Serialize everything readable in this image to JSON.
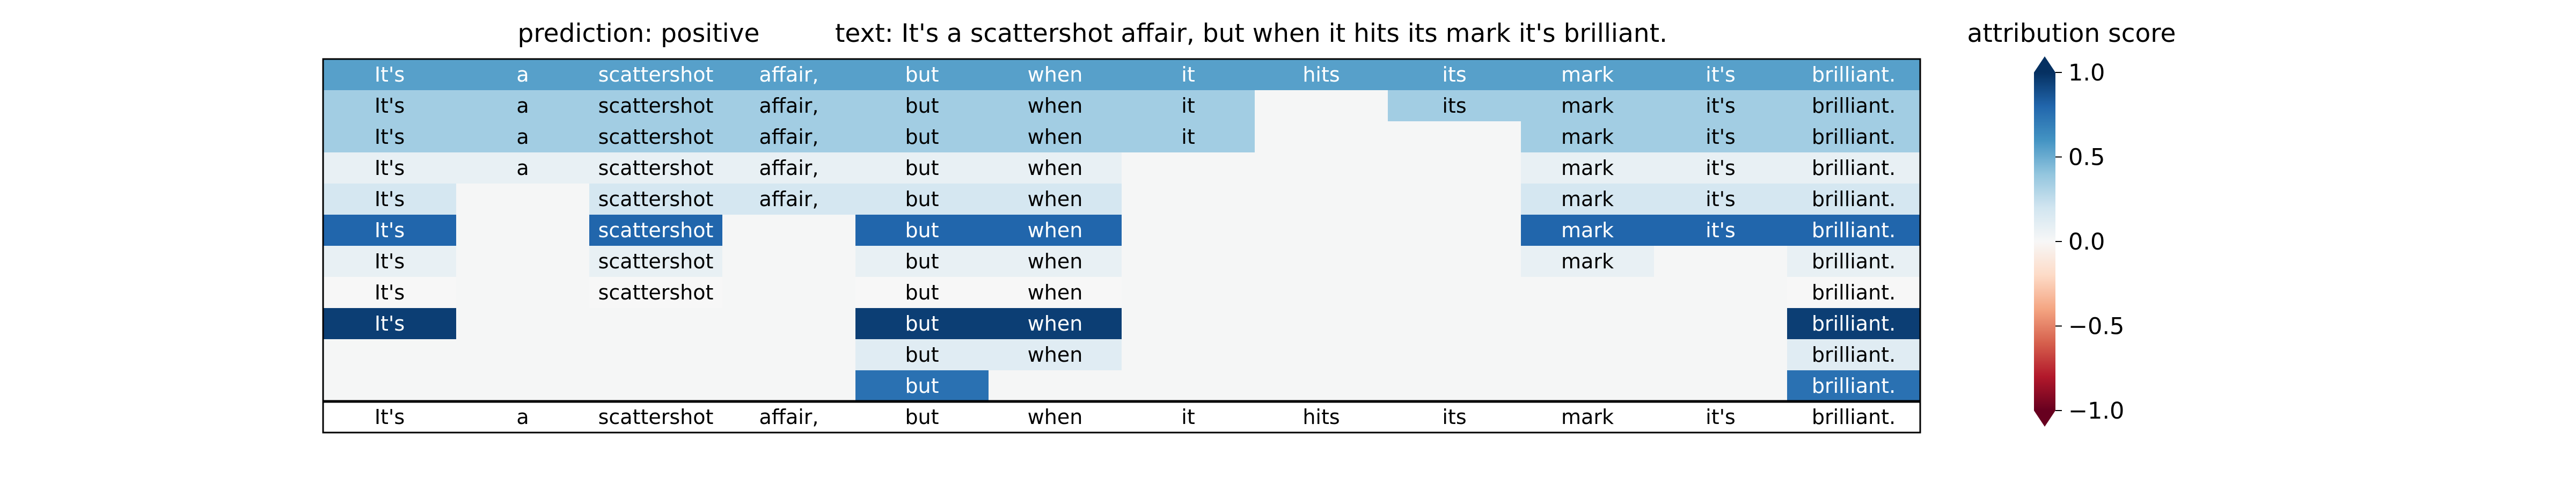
{
  "chart_data": {
    "type": "heatmap",
    "title_prediction": "prediction:  positive",
    "title_text": "text:  It's a scattershot affair, but when it hits its mark it's brilliant.",
    "colorbar_label": "attribution score",
    "colorbar_ticks": [
      "1.0",
      "0.5",
      "0.0",
      "−0.5",
      "−1.0"
    ],
    "colorbar_tick_values": [
      1.0,
      0.5,
      0.0,
      -0.5,
      -1.0
    ],
    "vmin": -1.0,
    "vmax": 1.0,
    "colormap": "RdBu",
    "tokens": [
      "It's",
      "a",
      "scattershot",
      "affair,",
      "but",
      "when",
      "it",
      "hits",
      "its",
      "mark",
      "it's",
      "brilliant."
    ],
    "rows": [
      [
        0.55,
        0.55,
        0.55,
        0.55,
        0.55,
        0.55,
        0.55,
        0.55,
        0.55,
        0.55,
        0.55,
        0.55
      ],
      [
        0.35,
        0.35,
        0.35,
        0.35,
        0.35,
        0.35,
        0.35,
        null,
        0.35,
        0.35,
        0.35,
        0.35
      ],
      [
        0.35,
        0.35,
        0.35,
        0.35,
        0.35,
        0.35,
        0.35,
        null,
        null,
        0.35,
        0.35,
        0.35
      ],
      [
        0.08,
        0.08,
        0.08,
        0.08,
        0.08,
        0.08,
        null,
        null,
        null,
        0.08,
        0.08,
        0.08
      ],
      [
        0.18,
        null,
        0.18,
        0.18,
        0.18,
        0.18,
        null,
        null,
        null,
        0.18,
        0.18,
        0.18
      ],
      [
        0.8,
        null,
        0.8,
        null,
        0.8,
        0.8,
        null,
        null,
        null,
        0.8,
        0.8,
        0.8
      ],
      [
        0.08,
        null,
        0.08,
        null,
        0.08,
        0.08,
        null,
        null,
        null,
        0.08,
        null,
        0.08
      ],
      [
        0.0,
        null,
        0.0,
        null,
        0.0,
        0.0,
        null,
        null,
        null,
        null,
        null,
        0.0
      ],
      [
        0.95,
        null,
        null,
        null,
        0.95,
        0.95,
        null,
        null,
        null,
        null,
        null,
        0.95
      ],
      [
        null,
        null,
        null,
        null,
        0.12,
        0.12,
        null,
        null,
        null,
        null,
        null,
        0.12
      ],
      [
        null,
        null,
        null,
        null,
        0.75,
        null,
        null,
        null,
        null,
        null,
        null,
        0.75
      ]
    ]
  }
}
